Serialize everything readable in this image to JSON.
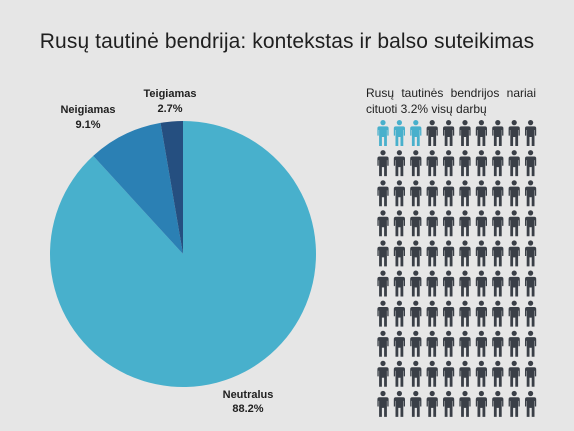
{
  "title": "Rusų tautinė bendrija: kontekstas ir balso suteikimas",
  "chart_data": [
    {
      "type": "pie",
      "title": "Rusų tautinė bendrija: kontekstas ir balso suteikimas",
      "slices": [
        {
          "label": "Neutralus",
          "value": 88.2,
          "value_label": "88.2%",
          "color": "#48b0cc"
        },
        {
          "label": "Neigiamas",
          "value": 9.1,
          "value_label": "9.1%",
          "color": "#2b80b4"
        },
        {
          "label": "Teigiamas",
          "value": 2.7,
          "value_label": "2.7%",
          "color": "#254f80"
        }
      ],
      "start": "12 o'clock",
      "direction": "clockwise"
    },
    {
      "type": "pictogram",
      "caption": "Rusų tautinės bendrijos nariai cituoti 3.2% visų darbų",
      "total_icons": 100,
      "columns": 10,
      "rows": 10,
      "highlighted": 3,
      "highlight_color": "#48b0cc",
      "base_color": "#3a3f47",
      "icon": "person-icon"
    }
  ]
}
